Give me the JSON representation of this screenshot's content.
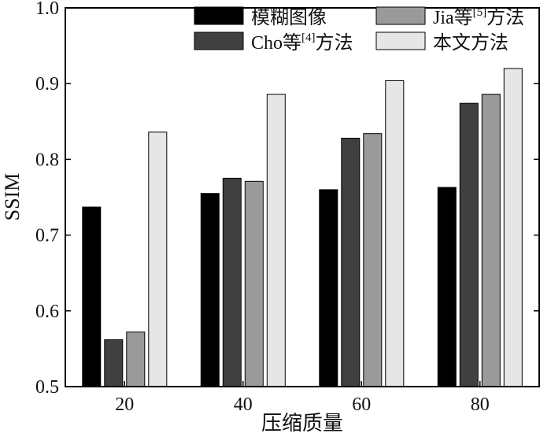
{
  "chart_data": {
    "type": "bar",
    "xlabel": "压缩质量",
    "ylabel": "SSIM",
    "ylim": [
      0.5,
      1.0
    ],
    "yticks": [
      "0.5",
      "0.6",
      "0.7",
      "0.8",
      "0.9",
      "1.0"
    ],
    "categories": [
      "20",
      "40",
      "60",
      "80"
    ],
    "grid": false,
    "legend_position": "top-right",
    "series": [
      {
        "name": "模糊图像",
        "color": "#000000",
        "values": [
          0.737,
          0.755,
          0.76,
          0.763
        ]
      },
      {
        "name": "Cho等[4]方法",
        "color": "#404040",
        "values": [
          0.562,
          0.775,
          0.828,
          0.874
        ]
      },
      {
        "name": "Jia等[5]方法",
        "color": "#9a9a9a",
        "values": [
          0.572,
          0.771,
          0.834,
          0.886
        ]
      },
      {
        "name": "本文方法",
        "color": "#e6e6e6",
        "values": [
          0.836,
          0.886,
          0.904,
          0.92
        ]
      }
    ],
    "legend_labels": [
      {
        "main": "模糊图像"
      },
      {
        "main": "Cho等",
        "sup": "[4]",
        "tail": "方法"
      },
      {
        "main": "Jia等",
        "sup": "[5]",
        "tail": "方法"
      },
      {
        "main": "本文方法"
      }
    ]
  }
}
